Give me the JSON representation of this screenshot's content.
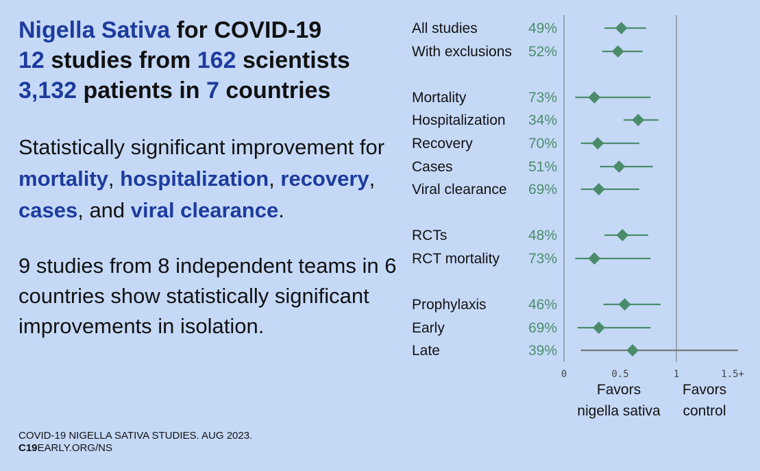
{
  "header": {
    "line1": {
      "highlight": "Nigella Sativa",
      "rest": " for COVID-19"
    },
    "line2": {
      "n1": "12",
      "t1": " studies from ",
      "n2": "162",
      "t2": " scientists"
    },
    "line3": {
      "n1": "3,132",
      "t1": " patients in ",
      "n2": "7",
      "t2": " countries"
    }
  },
  "summary": {
    "intro": "Statistically significant improvement for ",
    "items": [
      "mortality",
      "hospitalization",
      "recovery",
      "cases"
    ],
    "sep": ", ",
    "and": ", and ",
    "last": "viral clearance",
    "end": "."
  },
  "teams_text": "9 studies from 8 independent teams in 6 countries show statistically significant improvements in isolation.",
  "footer": {
    "line1": "COVID-19 NIGELLA SATIVA STUDIES. AUG 2023.",
    "line2_bold": "C19",
    "line2_rest": "EARLY.ORG/NS"
  },
  "colors": {
    "background": "#c5d9f7",
    "accent": "#1d3b9e",
    "marker": "#4a8c6a"
  },
  "chart_data": {
    "type": "forest",
    "xlim": [
      0,
      1.55
    ],
    "ticks": [
      {
        "value": 0,
        "label": "0"
      },
      {
        "value": 0.5,
        "label": "0.5"
      },
      {
        "value": 1,
        "label": "1"
      },
      {
        "value": 1.5,
        "label": "1.5+"
      }
    ],
    "reference_line": 1,
    "rows": [
      {
        "label": "All studies",
        "pct": "49%",
        "est": 0.51,
        "lo": 0.36,
        "hi": 0.73
      },
      {
        "label": "With exclusions",
        "pct": "52%",
        "est": 0.48,
        "lo": 0.34,
        "hi": 0.7
      },
      {
        "label": "Mortality",
        "pct": "73%",
        "est": 0.27,
        "lo": 0.1,
        "hi": 0.77
      },
      {
        "label": "Hospitalization",
        "pct": "34%",
        "est": 0.66,
        "lo": 0.53,
        "hi": 0.84
      },
      {
        "label": "Recovery",
        "pct": "70%",
        "est": 0.3,
        "lo": 0.15,
        "hi": 0.67
      },
      {
        "label": "Cases",
        "pct": "51%",
        "est": 0.49,
        "lo": 0.32,
        "hi": 0.79
      },
      {
        "label": "Viral clearance",
        "pct": "69%",
        "est": 0.31,
        "lo": 0.15,
        "hi": 0.67
      },
      {
        "label": "RCTs",
        "pct": "48%",
        "est": 0.52,
        "lo": 0.36,
        "hi": 0.75
      },
      {
        "label": "RCT mortality",
        "pct": "73%",
        "est": 0.27,
        "lo": 0.1,
        "hi": 0.77
      },
      {
        "label": "Prophylaxis",
        "pct": "46%",
        "est": 0.54,
        "lo": 0.35,
        "hi": 0.86
      },
      {
        "label": "Early",
        "pct": "69%",
        "est": 0.31,
        "lo": 0.12,
        "hi": 0.77
      },
      {
        "label": "Late",
        "pct": "39%",
        "est": 0.61,
        "lo": 0.15,
        "hi": 1.55
      }
    ],
    "favors_left": [
      "Favors",
      "nigella sativa"
    ],
    "favors_right": [
      "Favors",
      "control"
    ]
  }
}
